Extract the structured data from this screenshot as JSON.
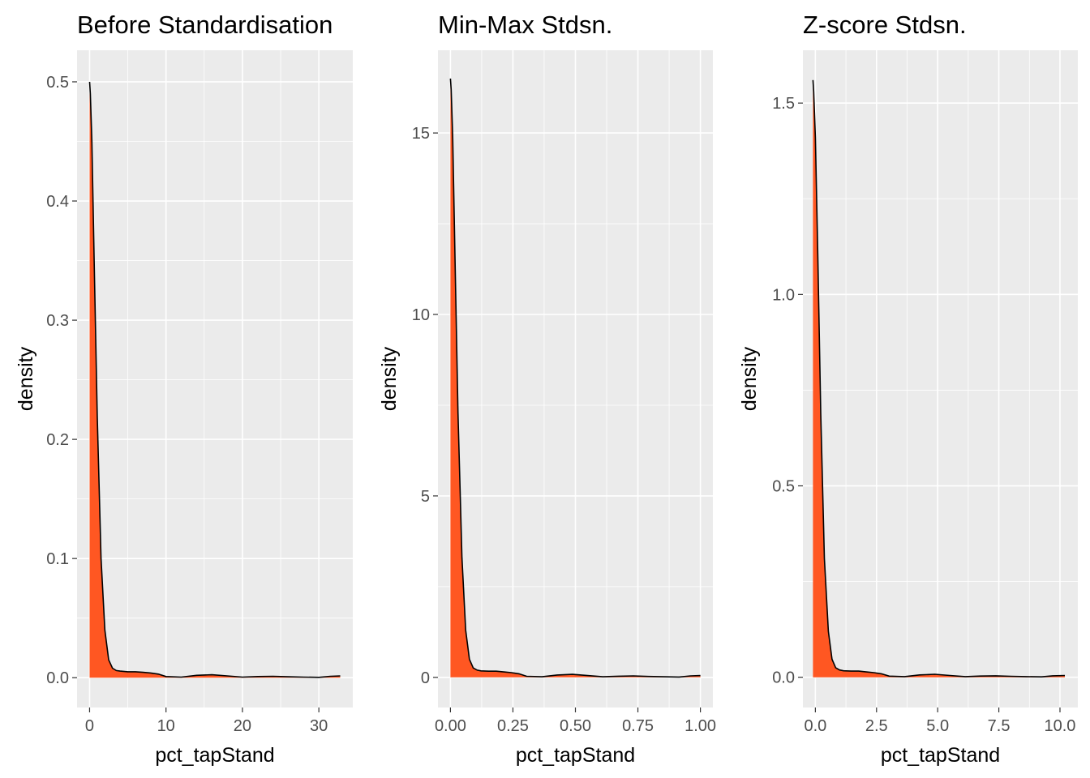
{
  "colors": {
    "panel_bg": "#EBEBEB",
    "grid": "#FFFFFF",
    "fill": "#FF5722",
    "line": "#000000",
    "tick": "#4D4D4D"
  },
  "chart_data": [
    {
      "type": "area",
      "title": "Before Standardisation",
      "xlabel": "pct_tapStand",
      "ylabel": "density",
      "xlim": [
        -1.64,
        34.44
      ],
      "ylim": [
        -0.025,
        0.5265
      ],
      "x_ticks": [
        0,
        10,
        20,
        30
      ],
      "x_tick_labels": [
        "0",
        "10",
        "20",
        "30"
      ],
      "y_ticks": [
        0.0,
        0.1,
        0.2,
        0.3,
        0.4,
        0.5
      ],
      "y_tick_labels": [
        "0.0",
        "0.1",
        "0.2",
        "0.3",
        "0.4",
        "0.5"
      ],
      "grid": true,
      "legend": "none",
      "x": [
        0.0,
        0.1,
        0.3,
        0.6,
        1.0,
        1.5,
        2.0,
        2.5,
        3.0,
        3.5,
        4.0,
        5.0,
        6.0,
        7.0,
        8.0,
        9.0,
        10.0,
        12.0,
        14.0,
        16.0,
        18.0,
        20.0,
        22.0,
        24.0,
        26.0,
        28.0,
        30.0,
        31.5,
        32.8
      ],
      "y": [
        0.5,
        0.49,
        0.45,
        0.35,
        0.22,
        0.1,
        0.04,
        0.015,
        0.008,
        0.006,
        0.0055,
        0.005,
        0.005,
        0.0045,
        0.004,
        0.003,
        0.001,
        0.0005,
        0.002,
        0.0025,
        0.0015,
        0.0005,
        0.001,
        0.0012,
        0.0008,
        0.0005,
        0.0003,
        0.0012,
        0.0015
      ]
    },
    {
      "type": "area",
      "title": "Min-Max Stdsn.",
      "xlabel": "pct_tapStand",
      "ylabel": "density",
      "xlim": [
        -0.05,
        1.05
      ],
      "ylim": [
        -0.83,
        17.28
      ],
      "x_ticks": [
        0.0,
        0.25,
        0.5,
        0.75,
        1.0
      ],
      "x_tick_labels": [
        "0.00",
        "0.25",
        "0.50",
        "0.75",
        "1.00"
      ],
      "y_ticks": [
        0,
        5,
        10,
        15
      ],
      "y_tick_labels": [
        "0",
        "5",
        "10",
        "15"
      ],
      "grid": true,
      "legend": "none",
      "x": [
        0.0,
        0.003,
        0.009,
        0.018,
        0.03,
        0.046,
        0.061,
        0.076,
        0.091,
        0.107,
        0.122,
        0.152,
        0.183,
        0.213,
        0.244,
        0.274,
        0.305,
        0.366,
        0.427,
        0.488,
        0.549,
        0.61,
        0.671,
        0.732,
        0.793,
        0.854,
        0.915,
        0.96,
        1.0
      ],
      "y": [
        16.5,
        16.2,
        14.9,
        11.6,
        7.3,
        3.3,
        1.3,
        0.5,
        0.26,
        0.2,
        0.18,
        0.17,
        0.17,
        0.15,
        0.13,
        0.1,
        0.03,
        0.017,
        0.066,
        0.083,
        0.05,
        0.017,
        0.033,
        0.04,
        0.026,
        0.017,
        0.01,
        0.04,
        0.05
      ]
    },
    {
      "type": "area",
      "title": "Z-score Stdsn.",
      "xlabel": "pct_tapStand",
      "ylabel": "density",
      "xlim": [
        -0.51,
        10.73
      ],
      "ylim": [
        -0.079,
        1.638
      ],
      "x_ticks": [
        0.0,
        2.5,
        5.0,
        7.5,
        10.0
      ],
      "x_tick_labels": [
        "0.0",
        "2.5",
        "5.0",
        "7.5",
        "10.0"
      ],
      "y_ticks": [
        0.0,
        0.5,
        1.0,
        1.5
      ],
      "y_tick_labels": [
        "0.0",
        "0.5",
        "1.0",
        "1.5"
      ],
      "grid": true,
      "legend": "none",
      "x": [
        -0.1,
        -0.07,
        0.0,
        0.1,
        0.22,
        0.37,
        0.53,
        0.68,
        0.83,
        0.99,
        1.15,
        1.46,
        1.77,
        2.08,
        2.39,
        2.7,
        3.02,
        3.64,
        4.26,
        4.88,
        5.5,
        6.13,
        6.75,
        7.37,
        8.0,
        8.62,
        9.24,
        9.7,
        10.2
      ],
      "y": [
        1.56,
        1.53,
        1.41,
        1.1,
        0.69,
        0.31,
        0.12,
        0.047,
        0.025,
        0.019,
        0.017,
        0.016,
        0.016,
        0.014,
        0.012,
        0.009,
        0.003,
        0.0016,
        0.0062,
        0.0078,
        0.0047,
        0.0016,
        0.0031,
        0.0037,
        0.0025,
        0.0016,
        0.001,
        0.0037,
        0.0047
      ]
    }
  ]
}
